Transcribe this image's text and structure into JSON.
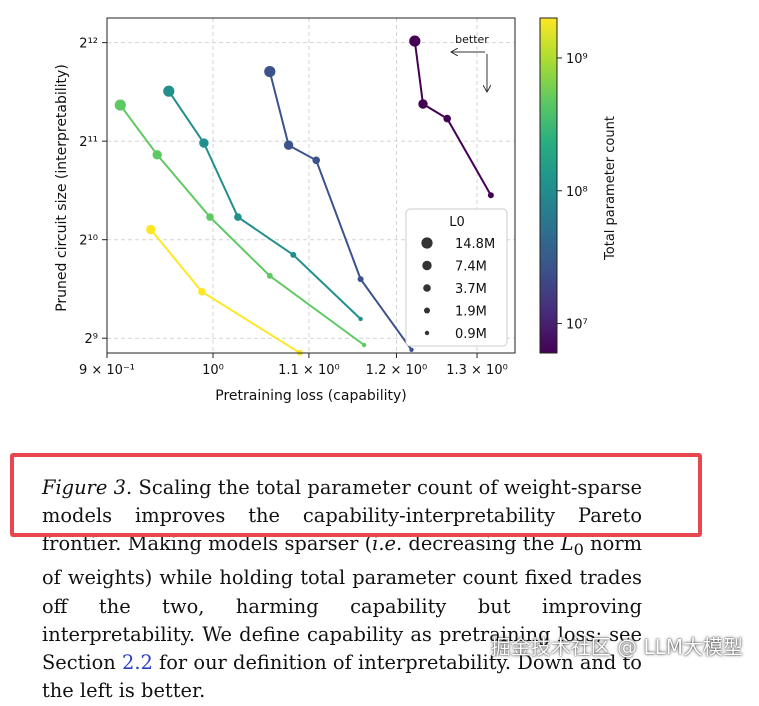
{
  "chart_data": {
    "type": "scatter",
    "xlabel": "Pretraining loss (capability)",
    "ylabel": "Pruned circuit size (interpretability)",
    "x_scale": "log",
    "y_scale": "log2",
    "xlim": [
      0.9,
      1.35
    ],
    "ylim_log2": [
      8.85,
      12.25
    ],
    "x_ticks": [
      {
        "value": 0.9,
        "label": "9 × 10⁻¹"
      },
      {
        "value": 1.0,
        "label": "10⁰"
      },
      {
        "value": 1.1,
        "label": "1.1 × 10⁰"
      },
      {
        "value": 1.2,
        "label": "1.2 × 10⁰"
      },
      {
        "value": 1.3,
        "label": "1.3 × 10⁰"
      }
    ],
    "y_ticks": [
      {
        "value": 512,
        "label": "2⁹"
      },
      {
        "value": 1024,
        "label": "2¹⁰"
      },
      {
        "value": 2048,
        "label": "2¹¹"
      },
      {
        "value": 4096,
        "label": "2¹²"
      }
    ],
    "grid": true,
    "legend": {
      "title": "L0",
      "placement": "lower-right",
      "entries": [
        "14.8M",
        "7.4M",
        "3.7M",
        "1.9M",
        "0.9M"
      ]
    },
    "annotation": "better",
    "series": [
      {
        "total_params": 9000000,
        "color": "#440154",
        "points": [
          {
            "x": 1.222,
            "y": 4140,
            "l0": "14.8M"
          },
          {
            "x": 1.232,
            "y": 2660,
            "l0": "7.4M"
          },
          {
            "x": 1.262,
            "y": 2400,
            "l0": "3.7M"
          },
          {
            "x": 1.318,
            "y": 1400,
            "l0": "1.9M"
          }
        ]
      },
      {
        "total_params": 30000000,
        "color": "#3b528b",
        "points": [
          {
            "x": 1.058,
            "y": 3340,
            "l0": "14.8M"
          },
          {
            "x": 1.078,
            "y": 1990,
            "l0": "7.4M"
          },
          {
            "x": 1.108,
            "y": 1790,
            "l0": "3.7M"
          },
          {
            "x": 1.158,
            "y": 776,
            "l0": "1.9M"
          },
          {
            "x": 1.218,
            "y": 472,
            "l0": "0.9M"
          }
        ]
      },
      {
        "total_params": 140000000,
        "color": "#21908d",
        "points": [
          {
            "x": 0.957,
            "y": 2910,
            "l0": "14.8M"
          },
          {
            "x": 0.991,
            "y": 2020,
            "l0": "7.4M"
          },
          {
            "x": 1.025,
            "y": 1200,
            "l0": "3.7M"
          },
          {
            "x": 1.083,
            "y": 920,
            "l0": "1.9M"
          },
          {
            "x": 1.158,
            "y": 586,
            "l0": "0.9M"
          }
        ]
      },
      {
        "total_params": 300000000,
        "color": "#5ec962",
        "points": [
          {
            "x": 0.912,
            "y": 2640,
            "l0": "14.8M"
          },
          {
            "x": 0.946,
            "y": 1860,
            "l0": "7.4M"
          },
          {
            "x": 0.997,
            "y": 1200,
            "l0": "3.7M"
          },
          {
            "x": 1.058,
            "y": 794,
            "l0": "1.9M"
          },
          {
            "x": 1.162,
            "y": 488,
            "l0": "0.9M"
          }
        ]
      },
      {
        "total_params": 1800000000,
        "color": "#fde725",
        "points": [
          {
            "x": 0.94,
            "y": 1100,
            "l0": "7.4M"
          },
          {
            "x": 0.989,
            "y": 710,
            "l0": "3.7M"
          },
          {
            "x": 1.09,
            "y": 462,
            "l0": "1.9M"
          }
        ]
      }
    ],
    "colorbar": {
      "label": "Total parameter count",
      "scale": "log",
      "min": 6000000,
      "max": 2000000000,
      "colormap": "viridis",
      "ticks": [
        {
          "value": 10000000,
          "label": "10⁷"
        },
        {
          "value": 100000000,
          "label": "10⁸"
        },
        {
          "value": 1000000000,
          "label": "10⁹"
        }
      ]
    }
  },
  "caption": {
    "figure_label": "Figure 3.",
    "highlighted_text": "Scaling the total parameter count of weight-sparse models improves the capability-interpretability Pareto frontier.",
    "text_part1": "Making models sparser (",
    "ie": "i.e.",
    "text_part2": " decreasing the ",
    "l0_symbol": "L",
    "l0_sub": "0",
    "text_part3": " norm of weights) while holding total parameter count fixed trades off the two, harming capability but improving interpretability. We define capability as pretraining loss; see Section ",
    "section_ref": "2.2",
    "text_part4": " for our definition of interpretability. Down and to the left is better."
  },
  "watermark": "掘金技术社区 @ LLM大模型",
  "highlight_color": "#e8474f"
}
